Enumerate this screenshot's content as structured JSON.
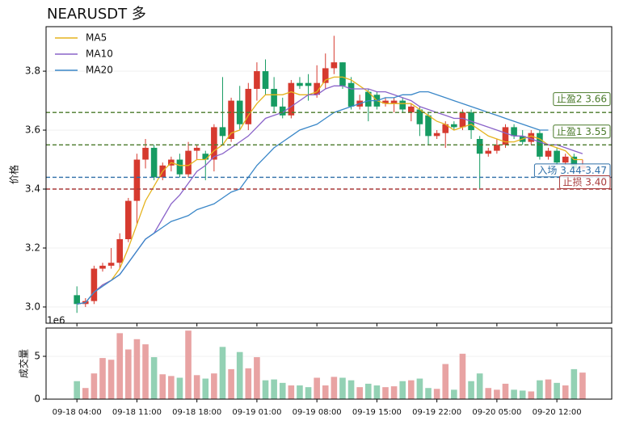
{
  "chart_data": [
    {
      "type": "candlestick",
      "title": "NEARUSDT 多",
      "ylabel": "价格",
      "open": [
        3.04,
        3.01,
        3.02,
        3.13,
        3.14,
        3.15,
        3.23,
        3.36,
        3.5,
        3.54,
        3.44,
        3.48,
        3.5,
        3.45,
        3.53,
        3.52,
        3.5,
        3.61,
        3.57,
        3.7,
        3.62,
        3.74,
        3.8,
        3.74,
        3.68,
        3.65,
        3.76,
        3.76,
        3.72,
        3.76,
        3.81,
        3.83,
        3.76,
        3.68,
        3.73,
        3.72,
        3.69,
        3.69,
        3.7,
        3.66,
        3.67,
        3.65,
        3.58,
        3.59,
        3.62,
        3.61,
        3.66,
        3.57,
        3.52,
        3.53,
        3.55,
        3.61,
        3.58,
        3.56,
        3.59,
        3.51,
        3.53,
        3.49,
        3.51,
        3.47
      ],
      "high": [
        3.07,
        3.03,
        3.14,
        3.15,
        3.2,
        3.25,
        3.37,
        3.52,
        3.57,
        3.55,
        3.49,
        3.51,
        3.52,
        3.56,
        3.55,
        3.53,
        3.62,
        3.78,
        3.71,
        3.75,
        3.76,
        3.83,
        3.84,
        3.78,
        3.71,
        3.77,
        3.78,
        3.79,
        3.82,
        3.86,
        3.92,
        3.83,
        3.78,
        3.72,
        3.74,
        3.73,
        3.71,
        3.71,
        3.71,
        3.69,
        3.68,
        3.66,
        3.6,
        3.63,
        3.63,
        3.67,
        3.67,
        3.58,
        3.54,
        3.57,
        3.62,
        3.62,
        3.6,
        3.6,
        3.6,
        3.54,
        3.54,
        3.52,
        3.52,
        3.5
      ],
      "low": [
        2.98,
        3.0,
        3.01,
        3.12,
        3.13,
        3.13,
        3.22,
        3.28,
        3.47,
        3.43,
        3.43,
        3.46,
        3.44,
        3.44,
        3.5,
        3.43,
        3.46,
        3.55,
        3.56,
        3.6,
        3.6,
        3.7,
        3.72,
        3.66,
        3.64,
        3.64,
        3.74,
        3.7,
        3.71,
        3.74,
        3.79,
        3.74,
        3.67,
        3.67,
        3.63,
        3.67,
        3.68,
        3.66,
        3.66,
        3.63,
        3.58,
        3.55,
        3.57,
        3.54,
        3.6,
        3.6,
        3.57,
        3.4,
        3.51,
        3.52,
        3.54,
        3.57,
        3.55,
        3.55,
        3.5,
        3.5,
        3.48,
        3.48,
        3.46,
        3.46
      ],
      "close": [
        3.01,
        3.02,
        3.13,
        3.14,
        3.15,
        3.23,
        3.36,
        3.5,
        3.54,
        3.44,
        3.48,
        3.5,
        3.45,
        3.53,
        3.54,
        3.5,
        3.61,
        3.58,
        3.7,
        3.62,
        3.74,
        3.8,
        3.74,
        3.68,
        3.65,
        3.76,
        3.75,
        3.75,
        3.76,
        3.81,
        3.83,
        3.75,
        3.68,
        3.7,
        3.68,
        3.68,
        3.7,
        3.7,
        3.67,
        3.68,
        3.62,
        3.58,
        3.59,
        3.62,
        3.61,
        3.66,
        3.6,
        3.52,
        3.53,
        3.55,
        3.61,
        3.58,
        3.56,
        3.59,
        3.51,
        3.53,
        3.49,
        3.51,
        3.47,
        3.48
      ],
      "up_color": "#d63a2f",
      "down_color": "#169b62",
      "series": [
        {
          "name": "MA5",
          "color": "#e5b31e",
          "values": [
            3.01,
            3.015,
            3.05,
            3.075,
            3.09,
            3.13,
            3.2,
            3.28,
            3.36,
            3.41,
            3.46,
            3.49,
            3.48,
            3.48,
            3.5,
            3.5,
            3.53,
            3.55,
            3.59,
            3.6,
            3.65,
            3.69,
            3.72,
            3.72,
            3.72,
            3.73,
            3.72,
            3.72,
            3.73,
            3.77,
            3.78,
            3.78,
            3.77,
            3.75,
            3.73,
            3.7,
            3.69,
            3.69,
            3.69,
            3.69,
            3.67,
            3.65,
            3.63,
            3.62,
            3.6,
            3.61,
            3.62,
            3.6,
            3.58,
            3.57,
            3.56,
            3.56,
            3.57,
            3.58,
            3.57,
            3.55,
            3.54,
            3.53,
            3.5,
            3.5
          ]
        },
        {
          "name": "MA10",
          "color": "#8a63c9",
          "values": [
            3.01,
            3.015,
            3.05,
            3.075,
            3.09,
            3.11,
            3.15,
            3.19,
            3.23,
            3.25,
            3.3,
            3.35,
            3.38,
            3.42,
            3.46,
            3.48,
            3.51,
            3.52,
            3.54,
            3.56,
            3.58,
            3.61,
            3.64,
            3.65,
            3.66,
            3.68,
            3.7,
            3.72,
            3.72,
            3.74,
            3.75,
            3.75,
            3.74,
            3.74,
            3.74,
            3.73,
            3.73,
            3.72,
            3.71,
            3.7,
            3.68,
            3.67,
            3.66,
            3.65,
            3.64,
            3.64,
            3.63,
            3.62,
            3.61,
            3.6,
            3.59,
            3.58,
            3.58,
            3.57,
            3.56,
            3.55,
            3.55,
            3.54,
            3.53,
            3.52
          ]
        },
        {
          "name": "MA20",
          "color": "#3a87c8",
          "values": [
            3.01,
            3.015,
            3.05,
            3.07,
            3.09,
            3.11,
            3.15,
            3.19,
            3.23,
            3.25,
            3.27,
            3.29,
            3.3,
            3.31,
            3.33,
            3.34,
            3.35,
            3.37,
            3.39,
            3.4,
            3.44,
            3.48,
            3.51,
            3.54,
            3.56,
            3.58,
            3.6,
            3.61,
            3.62,
            3.64,
            3.66,
            3.67,
            3.68,
            3.69,
            3.7,
            3.7,
            3.71,
            3.71,
            3.72,
            3.72,
            3.73,
            3.73,
            3.72,
            3.71,
            3.7,
            3.69,
            3.68,
            3.67,
            3.66,
            3.65,
            3.64,
            3.63,
            3.62,
            3.61,
            3.6,
            3.6,
            null,
            null,
            null,
            null
          ]
        }
      ],
      "levels": [
        {
          "label": "止盈2 3.66",
          "value": 3.66,
          "color": "#4a7a2a"
        },
        {
          "label": "止盈1 3.55",
          "value": 3.55,
          "color": "#4a7a2a"
        },
        {
          "label": "入场 3.44-3.47",
          "value": 3.44,
          "color": "#2f6fa8"
        },
        {
          "label": "止损 3.40",
          "value": 3.4,
          "color": "#a83a3a"
        }
      ],
      "xlim": [
        -3.6,
        62.4
      ],
      "ylim": [
        2.945,
        3.951
      ],
      "yticks": [
        {
          "value": 3.0,
          "label": "3.0"
        },
        3.2,
        3.4,
        3.6,
        3.8
      ],
      "xticks": [
        0,
        7,
        14,
        21,
        28,
        35,
        42,
        49,
        56
      ],
      "grid": true,
      "legend": "upper left"
    },
    {
      "type": "bar",
      "ylabel": "成交量",
      "offset_text": "1e6",
      "values": [
        2.1,
        1.3,
        3.0,
        4.8,
        4.6,
        7.7,
        5.8,
        7.0,
        6.4,
        4.9,
        2.9,
        2.7,
        2.5,
        8.0,
        2.8,
        2.4,
        3.0,
        6.1,
        3.5,
        5.5,
        3.6,
        4.9,
        2.2,
        2.3,
        1.9,
        1.6,
        1.6,
        1.4,
        2.5,
        1.6,
        2.6,
        2.5,
        2.2,
        1.4,
        1.8,
        1.6,
        1.4,
        1.5,
        2.1,
        2.2,
        2.4,
        1.3,
        1.2,
        4.1,
        1.1,
        5.3,
        2.1,
        3.0,
        1.3,
        1.1,
        1.8,
        1.1,
        1.0,
        0.9,
        2.2,
        2.3,
        1.9,
        1.6,
        3.5,
        3.1
      ],
      "up_color": "#e8a3a3",
      "down_color": "#93d1b4",
      "xlim": [
        -3.6,
        62.4
      ],
      "ylim": [
        0,
        8.3
      ],
      "yticks": [
        0,
        5
      ],
      "xticks": [
        {
          "value": 0,
          "label": "09-18 04:00"
        },
        {
          "value": 7,
          "label": "09-18 11:00"
        },
        {
          "value": 14,
          "label": "09-18 18:00"
        },
        {
          "value": 21,
          "label": "09-19 01:00"
        },
        {
          "value": 28,
          "label": "09-19 08:00"
        },
        {
          "value": 35,
          "label": "09-19 15:00"
        },
        {
          "value": 42,
          "label": "09-19 22:00"
        },
        {
          "value": 49,
          "label": "09-20 05:00"
        },
        {
          "value": 56,
          "label": "09-20 12:00"
        }
      ],
      "grid": true
    }
  ]
}
